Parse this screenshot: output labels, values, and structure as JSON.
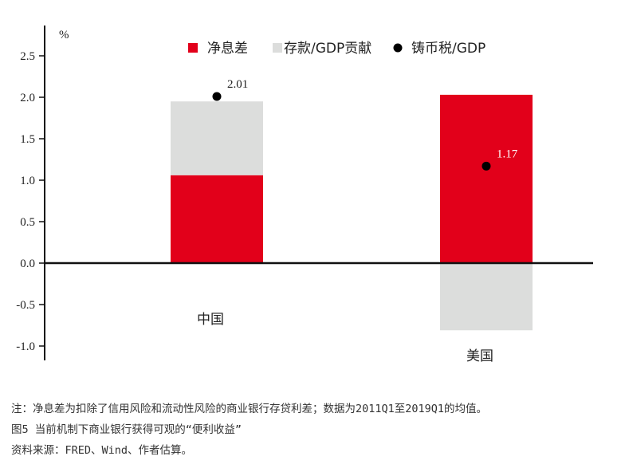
{
  "chart_data": {
    "type": "bar",
    "stacked": true,
    "unit": "%",
    "categories": [
      "中国",
      "美国"
    ],
    "series": [
      {
        "name": "净息差",
        "values": [
          1.06,
          2.03
        ],
        "color": "#e2001a",
        "kind": "bar"
      },
      {
        "name": "存款/GDP贡献",
        "values": [
          0.89,
          -0.81
        ],
        "color": "#dcdddc",
        "kind": "bar"
      },
      {
        "name": "铸币税/GDP",
        "values": [
          2.01,
          1.17
        ],
        "color": "#000000",
        "kind": "point"
      }
    ],
    "point_labels": [
      "2.01",
      "1.17"
    ],
    "ylim": [
      -1.1,
      2.8
    ],
    "yticks": [
      2.5,
      2.0,
      1.5,
      1.0,
      0.5,
      0.0,
      -0.5,
      -1.0
    ],
    "ytick_labels": [
      "2.5",
      "2.0",
      "1.5",
      "1.0",
      "0.5",
      "0.0",
      "-0.5",
      "-1.0"
    ],
    "legend_position": "top",
    "grid": false
  },
  "notes": [
    "注：净息差为扣除了信用风险和流动性风险的商业银行存贷利差；数据为2011Q1至2019Q1的均值。",
    "图5  当前机制下商业银行获得可观的“便利收益”",
    "资料来源：FRED、Wind、作者估算。"
  ]
}
